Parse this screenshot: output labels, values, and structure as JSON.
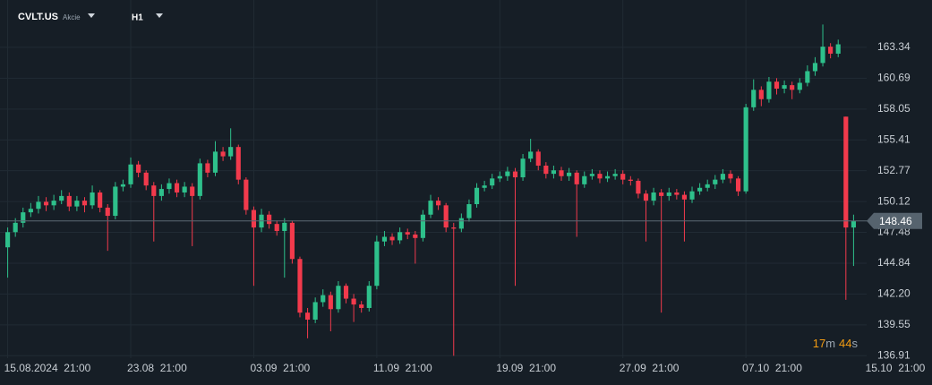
{
  "chart_data": {
    "type": "candlestick",
    "symbol": "CVLT.US",
    "instrument_type": "Akcie",
    "timeframe": "H1",
    "countdown": {
      "minutes": "17",
      "minutes_unit": "m",
      "seconds": "44",
      "seconds_unit": "s"
    },
    "up_color": "#2ec08b",
    "down_color": "#f23a4c",
    "grid": true,
    "ylim": [
      136.7,
      167.4
    ],
    "yticks": [
      163.34,
      160.69,
      158.05,
      155.41,
      152.77,
      150.12,
      147.48,
      144.84,
      {
        "value": 142.2,
        "label": "142.20"
      },
      139.55,
      136.91
    ],
    "xlim": [
      -1,
      111.7
    ],
    "xticks": [
      {
        "value": 0,
        "label": "15.08.2024  21:00"
      },
      {
        "value": 16,
        "label": "23.08  21:00"
      },
      {
        "value": 32,
        "label": "03.09  21:00"
      },
      {
        "value": 48,
        "label": "11.09  21:00"
      },
      {
        "value": 64,
        "label": "19.09  21:00"
      },
      {
        "value": 80,
        "label": "27.09  21:00"
      },
      {
        "value": 96,
        "label": "07.10  21:00"
      },
      {
        "value": 112,
        "label": "15.10  21:00"
      }
    ],
    "open": [
      146.2,
      147.5,
      148.3,
      149.2,
      149.5,
      150.1,
      149.8,
      150.2,
      150.6,
      149.7,
      150.2,
      149.8,
      150.9,
      149.6,
      148.9,
      151.4,
      151.6,
      153.3,
      152.6,
      151.5,
      150.6,
      151.2,
      151.7,
      150.9,
      151.4,
      150.6,
      153.4,
      152.6,
      154.4,
      154.0,
      154.8,
      152.0,
      149.4,
      147.9,
      149.0,
      148.2,
      147.6,
      148.3,
      145.2,
      140.6,
      140.0,
      141.5,
      142.1,
      140.9,
      142.9,
      141.8,
      141.3,
      141.0,
      142.9,
      146.7,
      147.1,
      146.8,
      147.5,
      147.3,
      147.0,
      149.0,
      150.2,
      149.8,
      147.9,
      147.8,
      148.7,
      149.9,
      151.3,
      151.5,
      152.1,
      152.3,
      152.7,
      152.2,
      153.8,
      154.4,
      153.2,
      152.5,
      152.8,
      152.3,
      152.6,
      151.6,
      152.3,
      152.5,
      152.1,
      152.3,
      152.5,
      152.0,
      151.9,
      150.8,
      150.2,
      150.9,
      150.6,
      150.9,
      150.7,
      150.3,
      151.0,
      151.3,
      151.6,
      152.0,
      152.5,
      152.1,
      151.0,
      158.2,
      159.7,
      158.9,
      160.4,
      159.8,
      160.1,
      159.7,
      160.3,
      161.3,
      162.0,
      163.4,
      162.8,
      157.4,
      147.9
    ],
    "high": [
      147.9,
      148.7,
      149.6,
      150.0,
      150.6,
      150.5,
      150.7,
      151.1,
      150.9,
      150.6,
      150.5,
      151.5,
      151.1,
      149.9,
      151.8,
      152.0,
      153.9,
      153.6,
      152.8,
      151.8,
      151.6,
      152.1,
      152.0,
      151.8,
      151.7,
      153.8,
      153.7,
      155.3,
      154.8,
      156.4,
      155.0,
      152.2,
      149.7,
      149.5,
      149.3,
      148.5,
      148.7,
      148.5,
      145.4,
      141.0,
      141.9,
      142.6,
      142.4,
      143.3,
      143.1,
      142.2,
      141.6,
      143.3,
      147.2,
      147.6,
      147.4,
      147.9,
      147.8,
      147.6,
      149.4,
      150.7,
      150.5,
      150.0,
      148.3,
      149.1,
      150.3,
      151.7,
      151.9,
      152.5,
      152.7,
      153.1,
      153.0,
      154.2,
      155.5,
      154.6,
      153.5,
      153.2,
      153.1,
      153.0,
      152.8,
      152.7,
      152.9,
      152.8,
      152.7,
      152.9,
      152.8,
      152.3,
      152.1,
      151.1,
      151.3,
      151.2,
      151.3,
      151.2,
      151.0,
      151.4,
      151.7,
      152.0,
      152.4,
      152.9,
      152.8,
      152.3,
      158.5,
      160.6,
      160.0,
      160.8,
      160.7,
      160.5,
      160.4,
      160.7,
      161.8,
      162.5,
      165.3,
      163.7,
      164.0,
      157.4,
      149.0
    ],
    "low": [
      143.6,
      147.1,
      147.9,
      148.8,
      149.1,
      149.3,
      149.4,
      149.9,
      149.3,
      149.3,
      149.2,
      149.5,
      149.2,
      145.9,
      148.6,
      151.0,
      151.3,
      152.2,
      151.1,
      146.7,
      150.2,
      150.8,
      150.5,
      150.5,
      146.3,
      150.3,
      152.2,
      152.3,
      153.6,
      153.7,
      151.6,
      149.0,
      142.9,
      147.5,
      147.8,
      147.2,
      143.6,
      144.8,
      140.2,
      138.4,
      139.7,
      141.1,
      139.0,
      140.6,
      141.4,
      139.8,
      140.6,
      140.7,
      142.6,
      146.3,
      146.4,
      146.5,
      146.9,
      144.8,
      146.7,
      148.7,
      149.4,
      147.5,
      136.9,
      147.5,
      148.4,
      149.6,
      151.0,
      151.2,
      151.8,
      151.9,
      142.9,
      151.9,
      153.5,
      152.8,
      152.1,
      152.1,
      151.9,
      151.9,
      147.1,
      151.3,
      152.0,
      151.7,
      151.8,
      152.0,
      151.6,
      151.5,
      150.4,
      146.7,
      149.8,
      140.6,
      150.2,
      150.3,
      146.7,
      150.0,
      150.7,
      151.0,
      151.2,
      151.7,
      151.7,
      150.6,
      150.8,
      157.9,
      158.3,
      158.6,
      159.3,
      159.4,
      158.9,
      159.4,
      160.0,
      160.9,
      161.7,
      162.4,
      162.5,
      141.7,
      144.6
    ],
    "close": [
      147.5,
      148.3,
      149.2,
      149.5,
      150.1,
      149.8,
      150.2,
      150.6,
      149.7,
      150.2,
      149.8,
      150.9,
      149.6,
      148.9,
      151.4,
      151.6,
      153.3,
      152.6,
      151.5,
      150.6,
      151.2,
      151.7,
      150.9,
      151.4,
      150.6,
      153.4,
      152.6,
      154.4,
      154.0,
      154.8,
      152.0,
      149.4,
      147.9,
      149.0,
      148.2,
      147.6,
      148.3,
      145.2,
      140.6,
      140.0,
      141.5,
      142.1,
      140.9,
      142.9,
      141.8,
      141.3,
      141.0,
      142.9,
      146.7,
      147.1,
      146.8,
      147.5,
      147.3,
      147.0,
      149.0,
      150.2,
      149.8,
      147.9,
      147.8,
      148.7,
      149.9,
      151.3,
      151.5,
      152.1,
      152.3,
      152.7,
      152.2,
      153.8,
      154.4,
      153.2,
      152.5,
      152.8,
      152.3,
      152.6,
      151.6,
      152.3,
      152.5,
      152.1,
      152.3,
      152.5,
      152.0,
      151.9,
      150.8,
      150.2,
      150.9,
      150.6,
      150.9,
      150.7,
      150.3,
      151.0,
      151.3,
      151.6,
      152.0,
      152.5,
      152.1,
      151.0,
      158.2,
      159.7,
      158.9,
      160.4,
      159.8,
      160.1,
      159.7,
      160.3,
      161.3,
      162.0,
      163.4,
      162.8,
      163.6,
      147.9,
      148.46
    ]
  }
}
